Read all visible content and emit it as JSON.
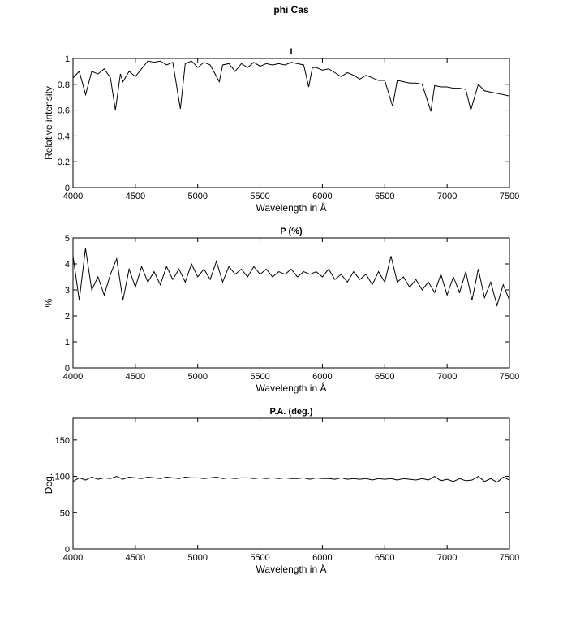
{
  "title": "phi Cas",
  "chart_data": [
    {
      "type": "line",
      "title": "I",
      "xlabel": "Wavelength in Å",
      "ylabel": "Relative intensity",
      "color": "#000000",
      "x": [
        4000,
        4050,
        4101,
        4150,
        4200,
        4250,
        4300,
        4340,
        4380,
        4400,
        4450,
        4500,
        4550,
        4600,
        4650,
        4700,
        4750,
        4800,
        4861,
        4900,
        4950,
        5000,
        5050,
        5100,
        5173,
        5200,
        5250,
        5300,
        5350,
        5400,
        5450,
        5500,
        5550,
        5600,
        5650,
        5700,
        5750,
        5800,
        5850,
        5890,
        5920,
        5950,
        6000,
        6050,
        6100,
        6150,
        6200,
        6250,
        6300,
        6350,
        6400,
        6450,
        6500,
        6563,
        6600,
        6650,
        6700,
        6750,
        6800,
        6870,
        6900,
        6950,
        7000,
        7050,
        7100,
        7150,
        7190,
        7220,
        7250,
        7300,
        7350,
        7400,
        7450,
        7500
      ],
      "values": [
        0.85,
        0.9,
        0.72,
        0.9,
        0.88,
        0.92,
        0.85,
        0.6,
        0.88,
        0.82,
        0.9,
        0.86,
        0.92,
        0.98,
        0.97,
        0.98,
        0.95,
        0.97,
        0.61,
        0.96,
        0.98,
        0.93,
        0.97,
        0.95,
        0.82,
        0.95,
        0.96,
        0.9,
        0.96,
        0.93,
        0.97,
        0.94,
        0.96,
        0.95,
        0.96,
        0.95,
        0.97,
        0.96,
        0.95,
        0.78,
        0.93,
        0.93,
        0.91,
        0.92,
        0.89,
        0.86,
        0.89,
        0.87,
        0.84,
        0.87,
        0.85,
        0.83,
        0.83,
        0.63,
        0.83,
        0.82,
        0.81,
        0.81,
        0.8,
        0.59,
        0.79,
        0.78,
        0.78,
        0.77,
        0.77,
        0.76,
        0.6,
        0.7,
        0.8,
        0.75,
        0.74,
        0.73,
        0.72,
        0.71
      ],
      "xlim": [
        4000,
        7500
      ],
      "xticks": [
        4000,
        4500,
        5000,
        5500,
        6000,
        6500,
        7000,
        7500
      ],
      "ylim": [
        0,
        1
      ],
      "yticks": [
        0,
        0.2,
        0.4,
        0.6,
        0.8,
        1
      ]
    },
    {
      "type": "line",
      "title": "P (%)",
      "xlabel": "Wavelength in Å",
      "ylabel": "%",
      "color": "#000000",
      "x": [
        4000,
        4050,
        4100,
        4150,
        4200,
        4250,
        4300,
        4350,
        4400,
        4450,
        4500,
        4550,
        4600,
        4650,
        4700,
        4750,
        4800,
        4850,
        4900,
        4950,
        5000,
        5050,
        5100,
        5150,
        5200,
        5250,
        5300,
        5350,
        5400,
        5450,
        5500,
        5550,
        5600,
        5650,
        5700,
        5750,
        5800,
        5850,
        5900,
        5950,
        6000,
        6050,
        6100,
        6150,
        6200,
        6250,
        6300,
        6350,
        6400,
        6450,
        6500,
        6550,
        6600,
        6650,
        6700,
        6750,
        6800,
        6850,
        6900,
        6950,
        7000,
        7050,
        7100,
        7150,
        7200,
        7250,
        7300,
        7350,
        7400,
        7450,
        7500
      ],
      "values": [
        4.3,
        2.6,
        4.6,
        3.0,
        3.5,
        2.8,
        3.6,
        4.2,
        2.6,
        3.8,
        3.1,
        3.9,
        3.3,
        3.7,
        3.2,
        3.9,
        3.4,
        3.8,
        3.3,
        4.0,
        3.5,
        3.8,
        3.4,
        4.1,
        3.3,
        3.9,
        3.6,
        3.8,
        3.5,
        3.9,
        3.6,
        3.8,
        3.5,
        3.7,
        3.6,
        3.8,
        3.5,
        3.7,
        3.6,
        3.7,
        3.5,
        3.8,
        3.4,
        3.6,
        3.3,
        3.7,
        3.4,
        3.6,
        3.2,
        3.7,
        3.3,
        4.3,
        3.3,
        3.5,
        3.1,
        3.4,
        3.0,
        3.3,
        2.9,
        3.6,
        2.8,
        3.5,
        2.9,
        3.7,
        2.6,
        3.8,
        2.7,
        3.3,
        2.4,
        3.2,
        2.6
      ],
      "xlim": [
        4000,
        7500
      ],
      "xticks": [
        4000,
        4500,
        5000,
        5500,
        6000,
        6500,
        7000,
        7500
      ],
      "ylim": [
        0,
        5
      ],
      "yticks": [
        0,
        1,
        2,
        3,
        4,
        5
      ]
    },
    {
      "type": "line",
      "title": "P.A. (deg.)",
      "xlabel": "Wavelength in Å",
      "ylabel": "Deg.",
      "color": "#000000",
      "x": [
        4000,
        4050,
        4100,
        4150,
        4200,
        4250,
        4300,
        4350,
        4400,
        4450,
        4500,
        4550,
        4600,
        4650,
        4700,
        4750,
        4800,
        4850,
        4900,
        4950,
        5000,
        5050,
        5100,
        5150,
        5200,
        5250,
        5300,
        5350,
        5400,
        5450,
        5500,
        5550,
        5600,
        5650,
        5700,
        5750,
        5800,
        5850,
        5900,
        5950,
        6000,
        6050,
        6100,
        6150,
        6200,
        6250,
        6300,
        6350,
        6400,
        6450,
        6500,
        6550,
        6600,
        6650,
        6700,
        6750,
        6800,
        6850,
        6900,
        6950,
        7000,
        7050,
        7100,
        7150,
        7200,
        7250,
        7300,
        7350,
        7400,
        7450,
        7500
      ],
      "values": [
        93,
        98,
        95,
        99,
        96,
        98,
        97,
        100,
        96,
        99,
        98,
        97,
        99,
        98,
        97,
        99,
        98,
        97,
        99,
        98,
        98,
        97,
        98,
        99,
        97,
        98,
        97,
        98,
        98,
        97,
        98,
        97,
        98,
        97,
        98,
        97,
        97,
        98,
        96,
        98,
        97,
        97,
        96,
        98,
        96,
        97,
        96,
        97,
        95,
        97,
        96,
        97,
        95,
        97,
        96,
        95,
        97,
        95,
        100,
        94,
        96,
        93,
        97,
        94,
        95,
        100,
        93,
        97,
        92,
        99,
        95
      ],
      "xlim": [
        4000,
        7500
      ],
      "xticks": [
        4000,
        4500,
        5000,
        5500,
        6000,
        6500,
        7000,
        7500
      ],
      "ylim": [
        0,
        180
      ],
      "yticks": [
        0,
        50,
        100,
        150
      ]
    }
  ]
}
